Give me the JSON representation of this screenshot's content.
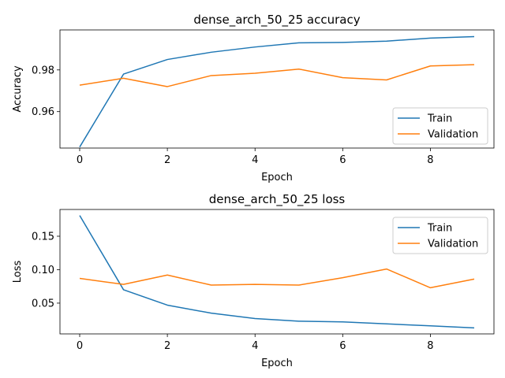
{
  "chart_data": [
    {
      "type": "line",
      "title": "dense_arch_50_25 accuracy",
      "xlabel": "Epoch",
      "ylabel": "Accuracy",
      "x": [
        0,
        1,
        2,
        3,
        4,
        5,
        6,
        7,
        8,
        9
      ],
      "xticks": [
        0,
        2,
        4,
        6,
        8
      ],
      "yticks": [
        0.96,
        0.98
      ],
      "xlim": [
        -0.45,
        9.45
      ],
      "ylim": [
        0.9425,
        0.9992
      ],
      "grid": false,
      "legend": "lower-right",
      "series": [
        {
          "name": "Train",
          "color": "#1f77b4",
          "values": [
            0.943,
            0.978,
            0.985,
            0.9885,
            0.991,
            0.993,
            0.9932,
            0.9938,
            0.9953,
            0.996
          ]
        },
        {
          "name": "Validation",
          "color": "#ff7f0e",
          "values": [
            0.9727,
            0.976,
            0.972,
            0.9773,
            0.9784,
            0.9804,
            0.9763,
            0.9752,
            0.9819,
            0.9825
          ]
        }
      ]
    },
    {
      "type": "line",
      "title": "dense_arch_50_25 loss",
      "xlabel": "Epoch",
      "ylabel": "Loss",
      "x": [
        0,
        1,
        2,
        3,
        4,
        5,
        6,
        7,
        8,
        9
      ],
      "xticks": [
        0,
        2,
        4,
        6,
        8
      ],
      "yticks": [
        0.05,
        0.1,
        0.15
      ],
      "xlim": [
        -0.45,
        9.45
      ],
      "ylim": [
        0.004,
        0.19
      ],
      "grid": false,
      "legend": "upper-right",
      "series": [
        {
          "name": "Train",
          "color": "#1f77b4",
          "values": [
            0.181,
            0.07,
            0.047,
            0.035,
            0.027,
            0.023,
            0.022,
            0.019,
            0.016,
            0.013
          ]
        },
        {
          "name": "Validation",
          "color": "#ff7f0e",
          "values": [
            0.087,
            0.078,
            0.092,
            0.077,
            0.078,
            0.077,
            0.088,
            0.101,
            0.073,
            0.086
          ]
        }
      ]
    }
  ]
}
